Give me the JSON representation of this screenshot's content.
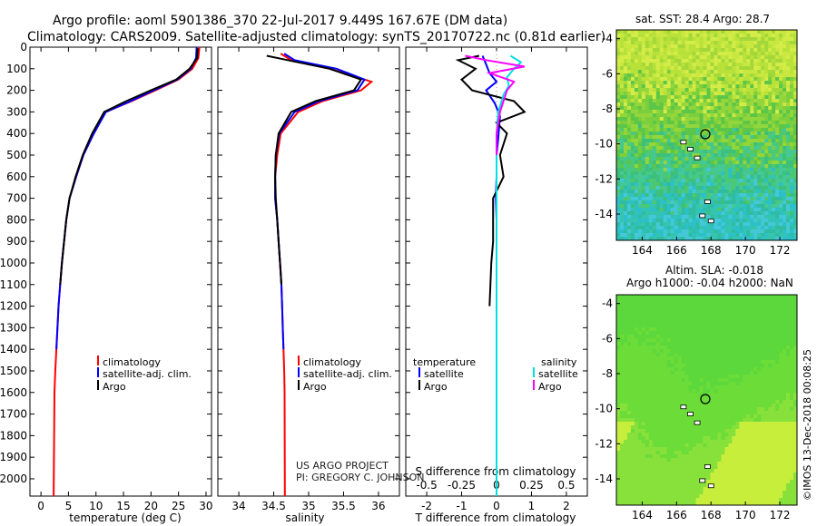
{
  "header": {
    "line1": "Argo profile: aoml 5901386_370 22-Jul-2017 9.449S 167.67E (DM data)",
    "line2": "Climatology: CARS2009. Satellite-adjusted climatology: synTS_20170722.nc (0.81d earlier)"
  },
  "credits": {
    "project": "US ARGO PROJECT",
    "pi": "PI: GREGORY C. JOHNSON"
  },
  "timestamp": "©IMOS 13-Dec-2018 00:08:25",
  "colors": {
    "climatology": "#ff0000",
    "satellite": "#0000ff",
    "argo": "#000000",
    "sat_salinity": "#00e0e0",
    "argo_salinity": "#ff00ff"
  },
  "chart_data": [
    {
      "type": "line",
      "xlabel": "temperature (deg C)",
      "ylabel": "",
      "xlim": [
        -2,
        31
      ],
      "ylim": [
        2080,
        0
      ],
      "xticks": [
        "0",
        "5",
        "10",
        "15",
        "20",
        "25",
        "30"
      ],
      "yticks": [
        "0",
        "100",
        "200",
        "300",
        "400",
        "500",
        "600",
        "700",
        "800",
        "900",
        "1000",
        "1100",
        "1200",
        "1300",
        "1400",
        "1500",
        "1600",
        "1700",
        "1800",
        "1900",
        "2000"
      ],
      "legend": [
        "climatology",
        "satellite-adj. clim.",
        "Argo"
      ],
      "series": [
        {
          "name": "climatology",
          "x": [
            28.8,
            28.6,
            27.5,
            25,
            20.8,
            16.5,
            11.8,
            9.6,
            7.7,
            6.4,
            5.2,
            4.6,
            4.2,
            3.8,
            3.5,
            3.2,
            3.0,
            2.8,
            2.6,
            2.45,
            2.3
          ],
          "y": [
            0,
            50,
            100,
            150,
            200,
            250,
            300,
            400,
            500,
            600,
            700,
            800,
            900,
            1000,
            1100,
            1200,
            1300,
            1400,
            1500,
            1600,
            2080
          ]
        },
        {
          "name": "satellite-adj. clim.",
          "x": [
            28.3,
            28.2,
            27.2,
            24.8,
            20.5,
            16.3,
            11.8,
            9.6,
            7.7,
            6.4,
            5.2,
            4.6,
            4.2,
            3.8,
            3.5,
            3.2,
            3.0,
            2.8
          ],
          "y": [
            0,
            50,
            100,
            150,
            200,
            250,
            300,
            400,
            500,
            600,
            700,
            800,
            900,
            1000,
            1100,
            1200,
            1300,
            1400
          ]
        },
        {
          "name": "Argo",
          "x": [
            28.5,
            28.4,
            27.0,
            24.6,
            20.0,
            15.5,
            11.5,
            9.3,
            7.6,
            6.3,
            5.2,
            4.6,
            4.2,
            3.8,
            3.5
          ],
          "y": [
            5,
            50,
            100,
            150,
            200,
            250,
            300,
            400,
            500,
            600,
            700,
            800,
            900,
            1000,
            1100
          ]
        }
      ]
    },
    {
      "type": "line",
      "xlabel": "salinity",
      "xlim": [
        33.7,
        36.3
      ],
      "ylim": [
        2080,
        0
      ],
      "xticks": [
        "34",
        "34.5",
        "35",
        "35.5",
        "36"
      ],
      "legend": [
        "climatology",
        "satellite-adj. clim.",
        "Argo"
      ],
      "series": [
        {
          "name": "climatology",
          "x": [
            34.6,
            34.75,
            35.3,
            35.9,
            35.75,
            35.2,
            34.85,
            34.6,
            34.55,
            34.52,
            34.52,
            34.55,
            34.57,
            34.59,
            34.61,
            34.62,
            34.63,
            34.64,
            34.65,
            34.655,
            34.66
          ],
          "y": [
            30,
            60,
            100,
            160,
            200,
            250,
            300,
            400,
            500,
            600,
            700,
            800,
            900,
            1000,
            1100,
            1200,
            1300,
            1400,
            1500,
            1600,
            2080
          ]
        },
        {
          "name": "satellite-adj. clim.",
          "x": [
            34.65,
            34.8,
            35.4,
            35.8,
            35.7,
            35.15,
            34.8,
            34.58,
            34.53,
            34.52,
            34.52,
            34.55,
            34.57,
            34.59,
            34.61,
            34.62,
            34.63,
            34.64
          ],
          "y": [
            30,
            60,
            100,
            150,
            200,
            250,
            300,
            400,
            500,
            600,
            700,
            800,
            900,
            1000,
            1100,
            1200,
            1300,
            1400
          ]
        },
        {
          "name": "Argo",
          "x": [
            34.4,
            34.7,
            35.3,
            35.75,
            35.65,
            35.1,
            34.75,
            34.57,
            34.53,
            34.52,
            34.53,
            34.55,
            34.57,
            34.59,
            34.61
          ],
          "y": [
            40,
            60,
            100,
            150,
            200,
            250,
            300,
            400,
            500,
            600,
            700,
            800,
            900,
            1000,
            1100
          ]
        }
      ]
    },
    {
      "type": "line",
      "xlabel": "T difference from climatology",
      "xlabel2": "S difference from climatology",
      "xlim": [
        -2.6,
        2.6
      ],
      "ylim": [
        2080,
        0
      ],
      "xticks": [
        "-2",
        "-1",
        "0",
        "1",
        "2"
      ],
      "xticks2": [
        "-0.5",
        "-0.25",
        "0",
        "0.25",
        "0.5"
      ],
      "legend_headers": [
        "temperature",
        "salinity"
      ],
      "legend": [
        "satellite",
        "Argo",
        "satellite",
        "Argo"
      ],
      "series": [
        {
          "name": "satellite",
          "x": [
            -0.4,
            -0.3,
            -0.2,
            0.0,
            -0.3,
            -0.05,
            0.1,
            0.05,
            0.0,
            0.0,
            -0.02,
            0.0,
            0.0,
            0.0,
            0.0
          ],
          "y": [
            40,
            80,
            120,
            160,
            200,
            260,
            320,
            420,
            500,
            600,
            700,
            800,
            900,
            1000,
            1400
          ]
        },
        {
          "name": "Argo",
          "x": [
            -0.5,
            -1.1,
            -0.6,
            -1.0,
            -0.7,
            0.5,
            0.8,
            0.0,
            0.3,
            0.1,
            0.2,
            -0.1,
            -0.1,
            -0.1,
            -0.15,
            -0.2
          ],
          "y": [
            40,
            60,
            100,
            150,
            200,
            250,
            300,
            350,
            400,
            500,
            600,
            700,
            800,
            900,
            1000,
            1200
          ]
        },
        {
          "name": "satellite",
          "x": [
            0.4,
            0.7,
            0.5,
            0.3,
            0.35,
            0.2,
            0.05,
            0.0,
            0.0,
            0.0,
            0.0,
            0.0
          ],
          "y": [
            40,
            70,
            100,
            140,
            180,
            220,
            300,
            400,
            500,
            700,
            1000,
            2080
          ]
        },
        {
          "name": "Argo",
          "x": [
            -0.9,
            -0.3,
            0.8,
            -0.2,
            0.5,
            0.3,
            0.1,
            0.0,
            0.0
          ],
          "y": [
            40,
            60,
            90,
            120,
            160,
            200,
            300,
            400,
            500
          ]
        }
      ]
    },
    {
      "type": "heatmap",
      "title": "sat. SST: 28.4 Argo: 28.7",
      "xlim": [
        162.5,
        173
      ],
      "ylim": [
        -15.5,
        -3.5
      ],
      "xticks": [
        "164",
        "166",
        "168",
        "170",
        "172"
      ],
      "yticks": [
        "-4",
        "-6",
        "-8",
        "-10",
        "-12",
        "-14"
      ],
      "marker": {
        "lon": 167.67,
        "lat": -9.449
      }
    },
    {
      "type": "heatmap",
      "title": "Altim. SLA: -0.018",
      "subtitle": "Argo h1000: -0.04 h2000: NaN",
      "xlim": [
        162.5,
        173
      ],
      "ylim": [
        -15.5,
        -3.5
      ],
      "xticks": [
        "164",
        "166",
        "168",
        "170",
        "172"
      ],
      "yticks": [
        "-4",
        "-6",
        "-8",
        "-10",
        "-12",
        "-14"
      ],
      "marker": {
        "lon": 167.67,
        "lat": -9.449
      }
    }
  ]
}
